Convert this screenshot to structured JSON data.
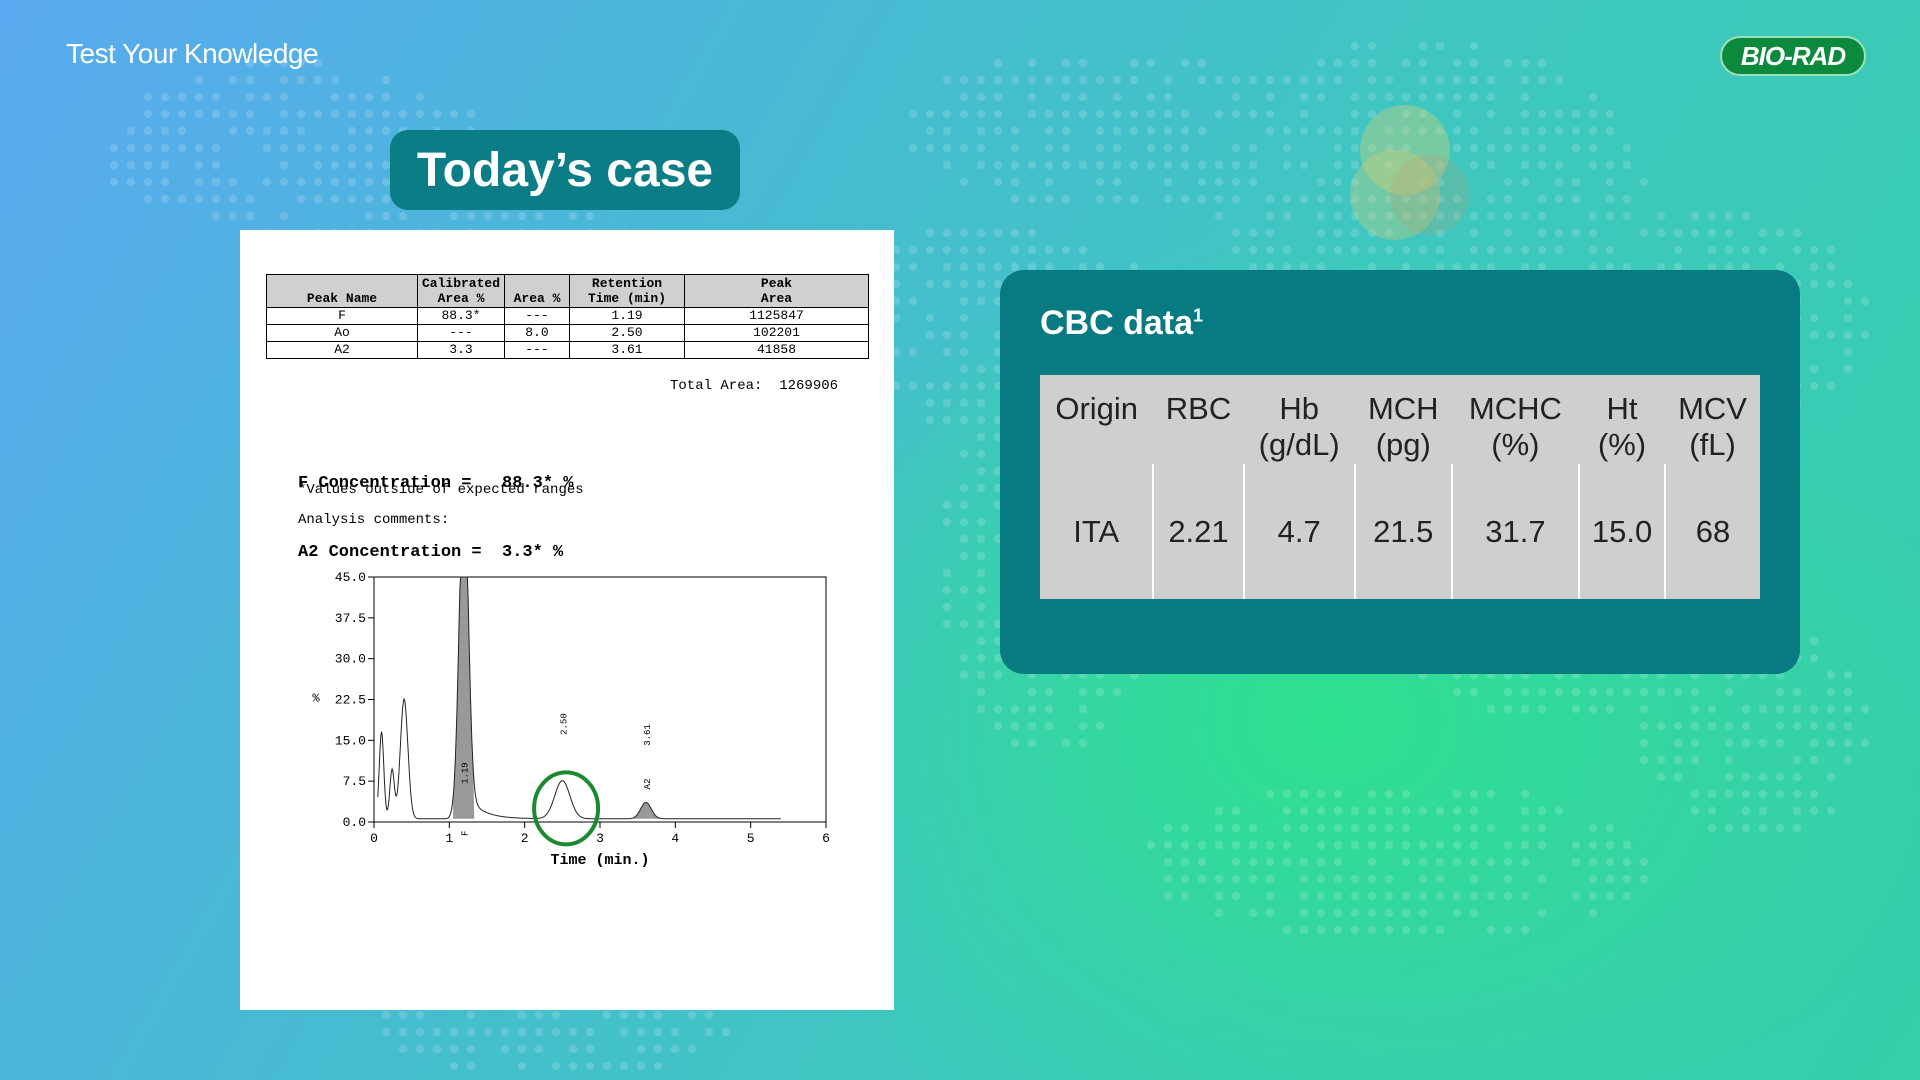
{
  "header": {
    "title": "Test Your Knowledge",
    "logo_text": "BIO-RAD"
  },
  "case_title": "Today’s case",
  "report": {
    "columns": [
      {
        "line1": "",
        "line2": "Peak Name"
      },
      {
        "line1": "Calibrated",
        "line2": "Area %"
      },
      {
        "line1": "",
        "line2": "Area %"
      },
      {
        "line1": "Retention",
        "line2": "Time (min)"
      },
      {
        "line1": "Peak",
        "line2": "Area"
      }
    ],
    "rows": [
      [
        "F",
        "88.3*",
        "---",
        "1.19",
        "1125847"
      ],
      [
        "Ao",
        "---",
        "8.0",
        "2.50",
        "102201"
      ],
      [
        "A2",
        "3.3",
        "---",
        "3.61",
        "41858"
      ]
    ],
    "total_area": "Total Area:  1269906",
    "f_concentration": "F Concentration =   88.3* %",
    "a2_concentration": "A2 Concentration =  3.3* %",
    "note": "*Values outside of expected ranges",
    "comments_label": "Analysis comments:"
  },
  "chart_data": {
    "type": "line",
    "xlabel": "Time (min.)",
    "ylabel": "%",
    "xlim": [
      0,
      6
    ],
    "ylim": [
      0,
      45
    ],
    "x_ticks": [
      "0",
      "1",
      "2",
      "3",
      "4",
      "5",
      "6"
    ],
    "y_ticks": [
      "0.0",
      "7.5",
      "15.0",
      "22.5",
      "30.0",
      "37.5",
      "45.0"
    ],
    "peak_labels": [
      {
        "x": 1.19,
        "label": "1.19",
        "peak": "F"
      },
      {
        "x": 2.5,
        "label": "2.50",
        "peak": ""
      },
      {
        "x": 3.61,
        "label": "3.61",
        "peak": "A2"
      }
    ],
    "annotation": {
      "type": "circle",
      "color": "#1a8a2e",
      "x": 2.55,
      "y": 2.5
    }
  },
  "cbc": {
    "title": "CBC data",
    "superscript": "1",
    "headers": [
      {
        "line1": "Origin",
        "line2": ""
      },
      {
        "line1": "RBC",
        "line2": ""
      },
      {
        "line1": "Hb",
        "line2": "(g/dL)"
      },
      {
        "line1": "MCH",
        "line2": "(pg)"
      },
      {
        "line1": "MCHC",
        "line2": "(%)"
      },
      {
        "line1": "Ht",
        "line2": "(%)"
      },
      {
        "line1": "MCV",
        "line2": "(fL)"
      }
    ],
    "values": [
      "ITA",
      "2.21",
      "4.7",
      "21.5",
      "31.7",
      "15.0",
      "68"
    ]
  }
}
